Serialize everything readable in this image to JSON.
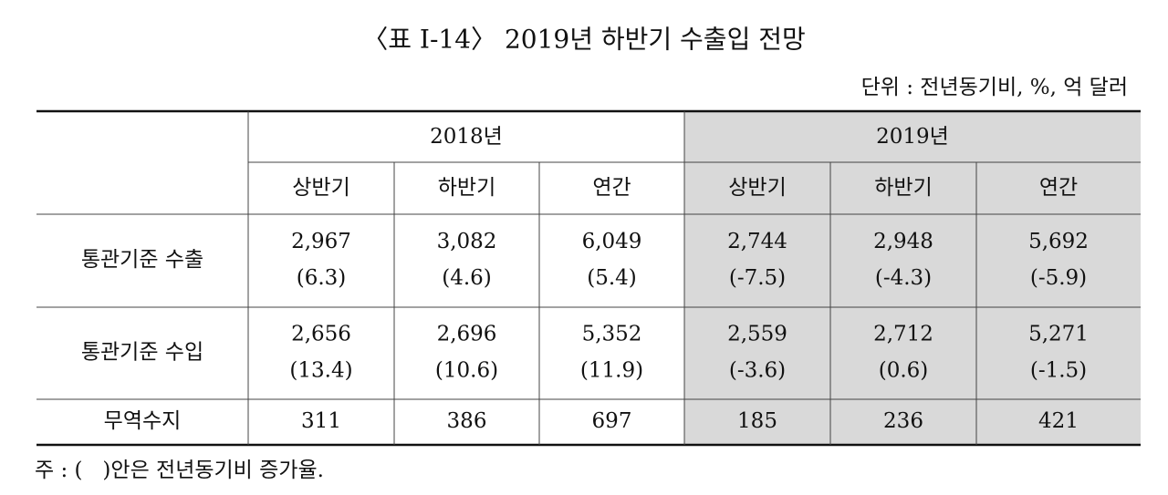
{
  "title": "〈표 Ⅰ-14〉 2019년 하반기 수출입 전망",
  "unit": "단위 : 전년동기비, %, 억 달러",
  "table": {
    "header_groups": [
      "2018년",
      "2019년"
    ],
    "subheaders": [
      "상반기",
      "하반기",
      "연간",
      "상반기",
      "하반기",
      "연간"
    ],
    "rows": [
      {
        "label": "통관기준 수출",
        "cells": [
          [
            "2,967",
            "(6.3)"
          ],
          [
            "3,082",
            "(4.6)"
          ],
          [
            "6,049",
            "(5.4)"
          ],
          [
            "2,744",
            "(-7.5)"
          ],
          [
            "2,948",
            "(-4.3)"
          ],
          [
            "5,692",
            "(-5.9)"
          ]
        ]
      },
      {
        "label": "통관기준 수입",
        "cells": [
          [
            "2,656",
            "(13.4)"
          ],
          [
            "2,696",
            "(10.6)"
          ],
          [
            "5,352",
            "(11.9)"
          ],
          [
            "2,559",
            "(-3.6)"
          ],
          [
            "2,712",
            "(0.6)"
          ],
          [
            "5,271",
            "(-1.5)"
          ]
        ]
      },
      {
        "label": "무역수지",
        "cells": [
          [
            "311"
          ],
          [
            "386"
          ],
          [
            "697"
          ],
          [
            "185"
          ],
          [
            "236"
          ],
          [
            "421"
          ]
        ]
      }
    ]
  },
  "note": "주 : (   )안은 전년동기비 증가율."
}
